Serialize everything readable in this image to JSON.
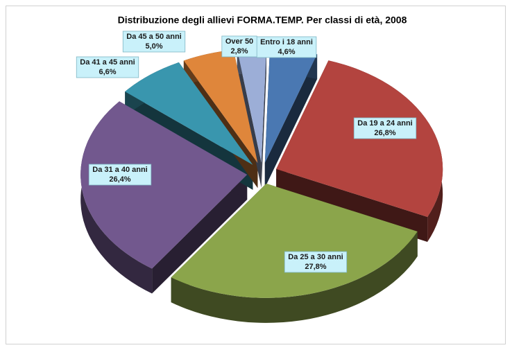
{
  "chart_data": {
    "type": "pie",
    "title": "Distribuzione degli allievi FORMA.TEMP. Per classi di età, 2008",
    "categories": [
      "Entro i 18 anni",
      "Da 19 a 24 anni",
      "Da 25 a 30 anni",
      "Da 31 a 40 anni",
      "Da 41 a 45 anni",
      "Da 45 a 50 anni",
      "Over 50"
    ],
    "values": [
      4.6,
      26.8,
      27.8,
      26.4,
      6.6,
      5.0,
      2.8
    ],
    "value_labels": [
      "4,6%",
      "26,8%",
      "27,8%",
      "26,4%",
      "6,6%",
      "5,0%",
      "2,8%"
    ],
    "colors": [
      "#4a78b2",
      "#b3443f",
      "#8ba54b",
      "#72588e",
      "#3996ae",
      "#df863b",
      "#9caed7"
    ]
  }
}
